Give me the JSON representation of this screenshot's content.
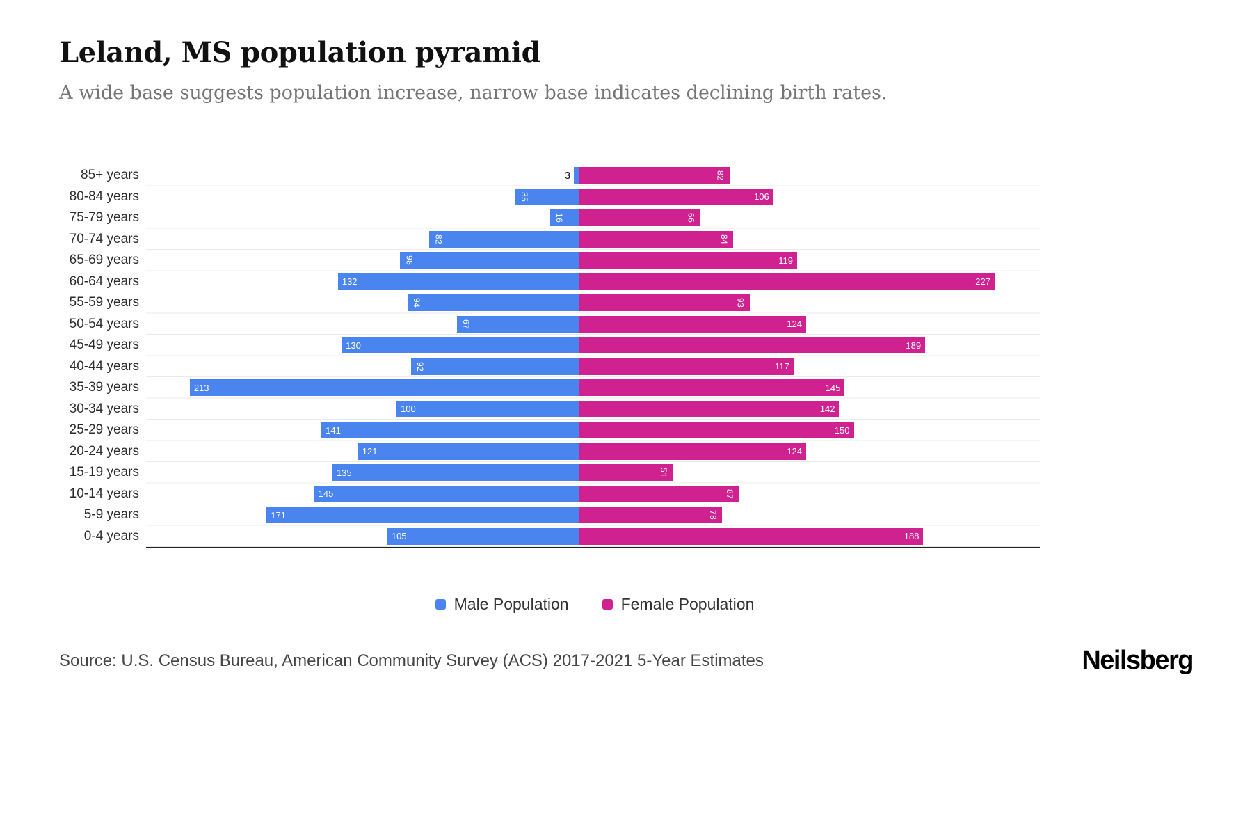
{
  "header": {
    "title": "Leland, MS population pyramid",
    "subtitle": "A wide base suggests population increase, narrow base indicates declining birth rates."
  },
  "legend": {
    "male": "Male Population",
    "female": "Female Population"
  },
  "footer": {
    "source": "Source: U.S. Census Bureau, American Community Survey (ACS) 2017-2021 5-Year Estimates",
    "logo": "Neilsberg"
  },
  "colors": {
    "male": "#4A84EE",
    "female": "#D02191"
  },
  "chart_data": {
    "type": "bar",
    "variant": "population-pyramid",
    "orientation": "horizontal",
    "title": "Leland, MS population pyramid",
    "subtitle": "A wide base suggests population increase, narrow base indicates declining birth rates.",
    "categories": [
      "85+ years",
      "80-84 years",
      "75-79 years",
      "70-74 years",
      "65-69 years",
      "60-64 years",
      "55-59 years",
      "50-54 years",
      "45-49 years",
      "40-44 years",
      "35-39 years",
      "30-34 years",
      "25-29 years",
      "20-24 years",
      "15-19 years",
      "10-14 years",
      "5-9 years",
      "0-4 years"
    ],
    "series": [
      {
        "name": "Male Population",
        "color": "#4A84EE",
        "values": [
          3,
          35,
          16,
          82,
          98,
          132,
          94,
          67,
          130,
          92,
          213,
          100,
          141,
          121,
          135,
          145,
          171,
          105
        ]
      },
      {
        "name": "Female Population",
        "color": "#D02191",
        "values": [
          82,
          106,
          66,
          84,
          119,
          227,
          93,
          124,
          189,
          117,
          145,
          142,
          150,
          124,
          51,
          87,
          78,
          188
        ]
      }
    ],
    "xmax_per_side": 235,
    "grid": "horizontal-light",
    "legend_position": "bottom"
  }
}
